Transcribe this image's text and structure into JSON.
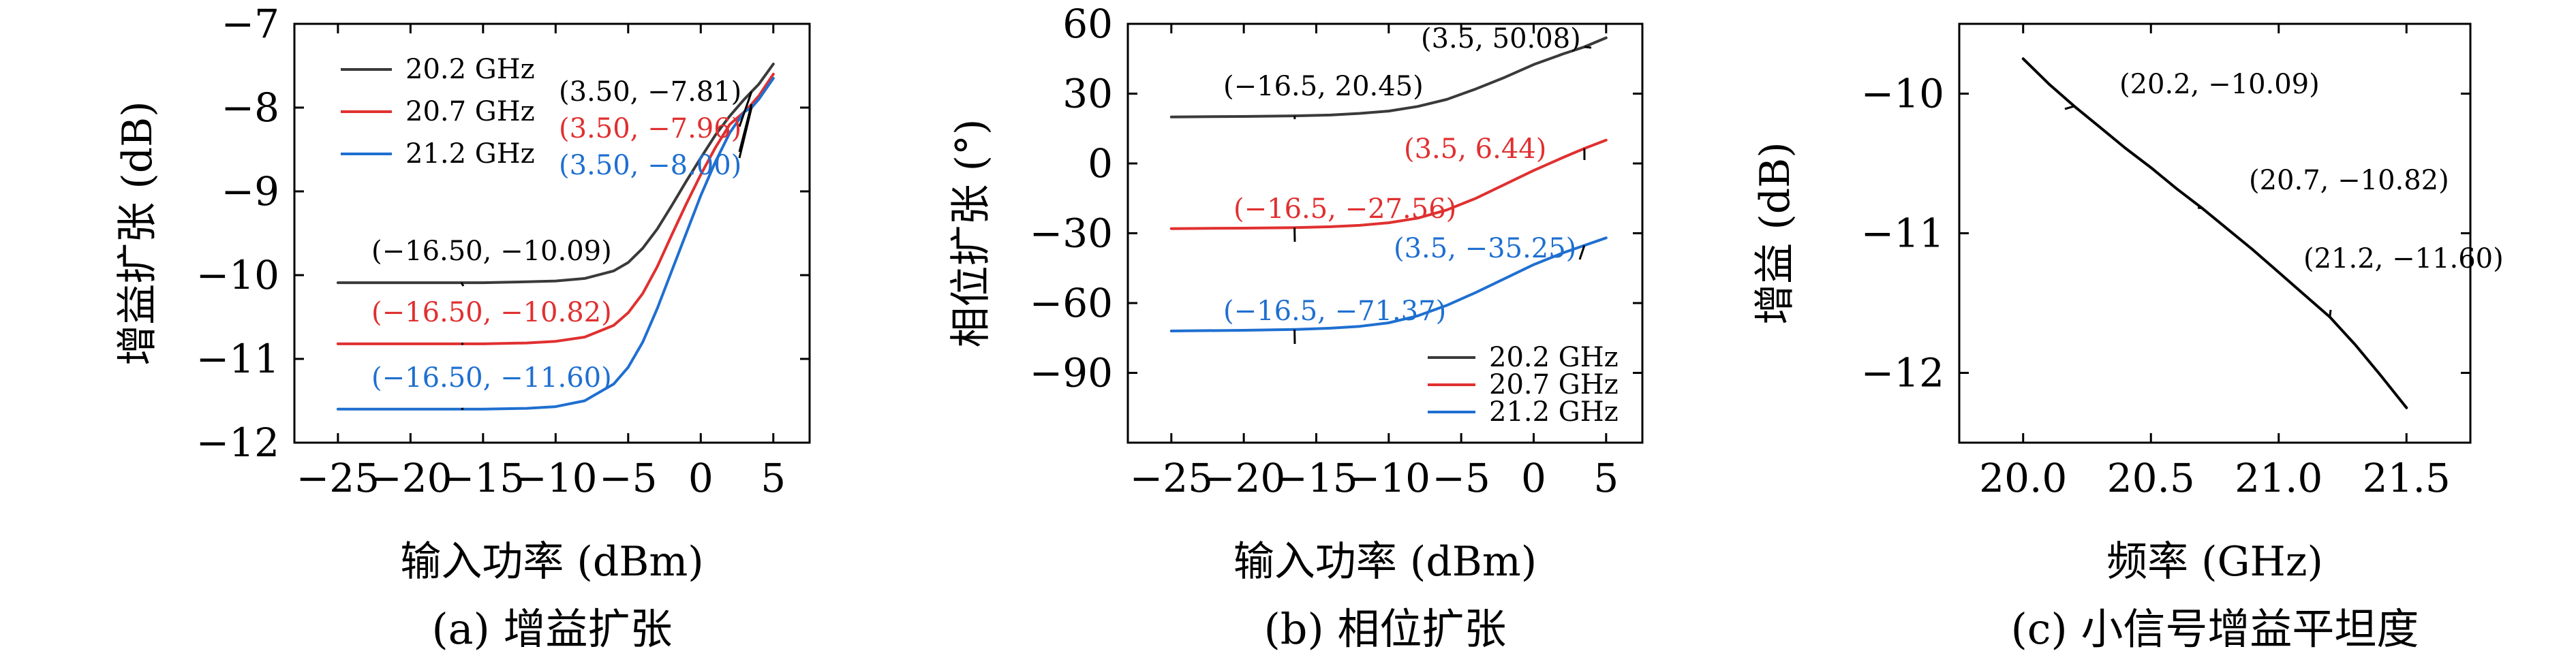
{
  "colors": {
    "series_2_2": "#3a3a3a",
    "series_2_7": "#e03030",
    "series_1_2": "#1f6fd0",
    "black": "#000000"
  },
  "chart_data": [
    {
      "type": "line",
      "caption": "(a) 增益扩张",
      "xlabel": "输入功率 (dBm)",
      "ylabel": "增益扩张 (dB)",
      "xlim": [
        -28,
        7.5
      ],
      "ylim": [
        -12,
        -7
      ],
      "xticks": [
        -25,
        -20,
        -15,
        -10,
        -5,
        0,
        5
      ],
      "xtick_labels": [
        "−25",
        "−20",
        "−15",
        "−10",
        "−5",
        "0",
        "5"
      ],
      "yticks": [
        -12,
        -11,
        -10,
        -9,
        -8,
        -7
      ],
      "ytick_labels": [
        "−12",
        "−11",
        "−10",
        "−9",
        "−8",
        "−7"
      ],
      "legend": {
        "position": "top-left",
        "entries": [
          "20.2 GHz",
          "20.7 GHz",
          "21.2 GHz"
        ]
      },
      "series": [
        {
          "name": "20.2 GHz",
          "color": "#3a3a3a",
          "x": [
            -25,
            -20,
            -15,
            -12,
            -10,
            -8,
            -6,
            -5,
            -4,
            -3,
            -2,
            -1,
            0,
            1,
            2,
            3,
            3.5,
            4,
            5
          ],
          "y": [
            -10.09,
            -10.09,
            -10.09,
            -10.08,
            -10.07,
            -10.04,
            -9.95,
            -9.85,
            -9.68,
            -9.45,
            -9.17,
            -8.88,
            -8.6,
            -8.33,
            -8.1,
            -7.9,
            -7.81,
            -7.72,
            -7.48
          ]
        },
        {
          "name": "20.7 GHz",
          "color": "#e03030",
          "x": [
            -25,
            -20,
            -15,
            -12,
            -10,
            -8,
            -6,
            -5,
            -4,
            -3,
            -2,
            -1,
            0,
            1,
            2,
            3,
            3.5,
            4,
            5
          ],
          "y": [
            -10.82,
            -10.82,
            -10.82,
            -10.81,
            -10.79,
            -10.74,
            -10.6,
            -10.45,
            -10.22,
            -9.9,
            -9.52,
            -9.15,
            -8.8,
            -8.48,
            -8.2,
            -8.05,
            -7.96,
            -7.86,
            -7.6
          ]
        },
        {
          "name": "21.2 GHz",
          "color": "#1f6fd0",
          "x": [
            -25,
            -20,
            -15,
            -12,
            -10,
            -8,
            -6,
            -5,
            -4,
            -3,
            -2,
            -1,
            0,
            1,
            2,
            3,
            3.5,
            4,
            5
          ],
          "y": [
            -11.6,
            -11.6,
            -11.6,
            -11.59,
            -11.57,
            -11.5,
            -11.3,
            -11.1,
            -10.8,
            -10.4,
            -9.95,
            -9.5,
            -9.05,
            -8.65,
            -8.3,
            -8.05,
            -8.0,
            -7.9,
            -7.65
          ]
        }
      ],
      "annotations": [
        {
          "text": "(−16.50, −10.09)",
          "color": "#000000",
          "x": -16.5,
          "y": -10.09
        },
        {
          "text": "(−16.50, −10.82)",
          "color": "#e03030",
          "x": -16.5,
          "y": -10.82
        },
        {
          "text": "(−16.50, −11.60)",
          "color": "#1f6fd0",
          "x": -16.5,
          "y": -11.6
        },
        {
          "text": "(3.50, −7.81)",
          "color": "#000000",
          "x": 3.5,
          "y": -7.81
        },
        {
          "text": "(3.50, −7.96)",
          "color": "#e03030",
          "x": 3.5,
          "y": -7.96
        },
        {
          "text": "(3.50, −8.00)",
          "color": "#1f6fd0",
          "x": 3.5,
          "y": -8.0
        }
      ]
    },
    {
      "type": "line",
      "caption": "(b) 相位扩张",
      "xlabel": "输入功率 (dBm)",
      "ylabel": "相位扩张 (°)",
      "xlim": [
        -28,
        7.5
      ],
      "ylim": [
        -120,
        60
      ],
      "xticks": [
        -25,
        -20,
        -15,
        -10,
        -5,
        0,
        5
      ],
      "xtick_labels": [
        "−25",
        "−20",
        "−15",
        "−10",
        "−5",
        "0",
        "5"
      ],
      "yticks": [
        60,
        30,
        0,
        -30,
        -60,
        -90
      ],
      "ytick_labels": [
        "60",
        "30",
        "0",
        "−30",
        "−60",
        "−90"
      ],
      "legend": {
        "position": "bottom-right",
        "entries": [
          "20.2 GHz",
          "20.7 GHz",
          "21.2 GHz"
        ]
      },
      "series": [
        {
          "name": "20.2 GHz",
          "color": "#3a3a3a",
          "x": [
            -25,
            -20,
            -16.5,
            -14,
            -12,
            -10,
            -8,
            -6,
            -4,
            -2,
            0,
            2,
            3.5,
            5
          ],
          "y": [
            20.0,
            20.2,
            20.45,
            20.8,
            21.5,
            22.5,
            24.5,
            27.5,
            32,
            37,
            42.5,
            47,
            50.08,
            54
          ]
        },
        {
          "name": "20.7 GHz",
          "color": "#e03030",
          "x": [
            -25,
            -20,
            -16.5,
            -14,
            -12,
            -10,
            -8,
            -6,
            -4,
            -2,
            0,
            2,
            3.5,
            5
          ],
          "y": [
            -28.0,
            -27.8,
            -27.56,
            -27.2,
            -26.6,
            -25.5,
            -23.5,
            -20,
            -15,
            -9,
            -3,
            2.5,
            6.44,
            10
          ]
        },
        {
          "name": "21.2 GHz",
          "color": "#1f6fd0",
          "x": [
            -25,
            -20,
            -16.5,
            -14,
            -12,
            -10,
            -8,
            -6,
            -4,
            -2,
            0,
            2,
            3.5,
            5
          ],
          "y": [
            -72.0,
            -71.7,
            -71.37,
            -70.8,
            -70,
            -68.5,
            -65.5,
            -61,
            -55.5,
            -49.5,
            -43.5,
            -38.5,
            -35.25,
            -32
          ]
        }
      ],
      "annotations": [
        {
          "text": "(3.5, 50.08)",
          "color": "#000000",
          "x": 3.5,
          "y": 50.08
        },
        {
          "text": "(−16.5, 20.45)",
          "color": "#000000",
          "x": -16.5,
          "y": 20.45
        },
        {
          "text": "(3.5, 6.44)",
          "color": "#e03030",
          "x": 3.5,
          "y": 6.44
        },
        {
          "text": "(−16.5, −27.56)",
          "color": "#e03030",
          "x": -16.5,
          "y": -27.56
        },
        {
          "text": "(3.5, −35.25)",
          "color": "#1f6fd0",
          "x": 3.5,
          "y": -35.25
        },
        {
          "text": "(−16.5, −71.37)",
          "color": "#1f6fd0",
          "x": -16.5,
          "y": -71.37
        }
      ]
    },
    {
      "type": "line",
      "caption": "(c) 小信号增益平坦度",
      "xlabel": "频率 (GHz)",
      "ylabel": "增益 (dB)",
      "xlim": [
        19.75,
        21.75
      ],
      "ylim": [
        -12.5,
        -9.5
      ],
      "xticks": [
        20.0,
        20.5,
        21.0,
        21.5
      ],
      "xtick_labels": [
        "20.0",
        "20.5",
        "21.0",
        "21.5"
      ],
      "yticks": [
        -10,
        -11,
        -12
      ],
      "ytick_labels": [
        "−10",
        "−11",
        "−12"
      ],
      "series": [
        {
          "name": "",
          "color": "#000000",
          "x": [
            20.0,
            20.1,
            20.2,
            20.3,
            20.4,
            20.5,
            20.6,
            20.7,
            20.8,
            20.9,
            21.0,
            21.1,
            21.2,
            21.3,
            21.4,
            21.5
          ],
          "y": [
            -9.75,
            -9.93,
            -10.09,
            -10.24,
            -10.39,
            -10.53,
            -10.68,
            -10.82,
            -10.97,
            -11.12,
            -11.28,
            -11.44,
            -11.6,
            -11.8,
            -12.02,
            -12.25
          ]
        }
      ],
      "annotations": [
        {
          "text": "(20.2, −10.09)",
          "color": "#000000",
          "x": 20.2,
          "y": -10.09
        },
        {
          "text": "(20.7, −10.82)",
          "color": "#000000",
          "x": 20.7,
          "y": -10.82
        },
        {
          "text": "(21.2, −11.60)",
          "color": "#000000",
          "x": 21.2,
          "y": -11.6
        }
      ]
    }
  ]
}
